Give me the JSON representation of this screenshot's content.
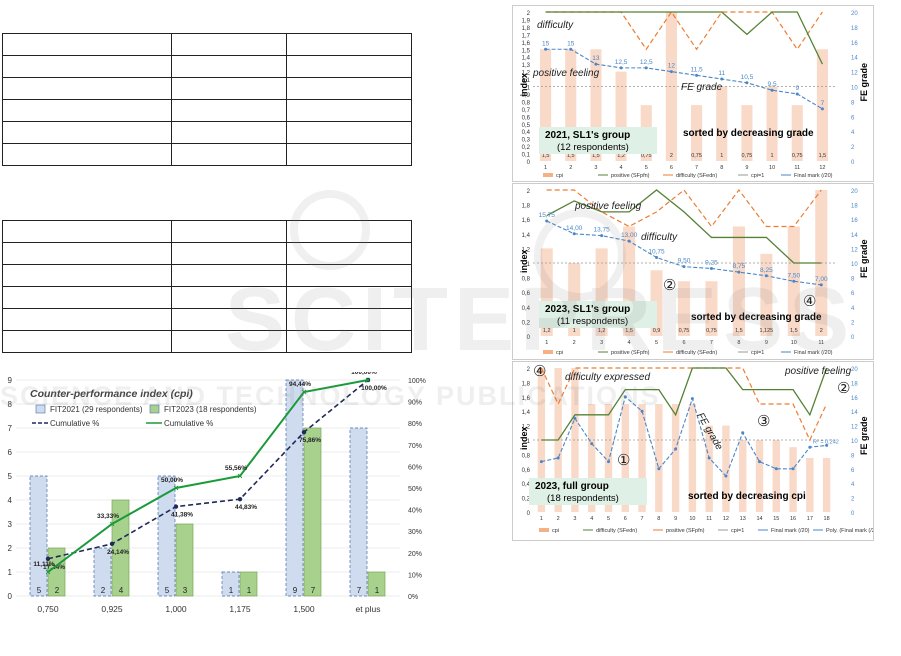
{
  "tables": {
    "top_rows": 6,
    "bottom_rows": 6,
    "cols": 3
  },
  "chart_data": [
    {
      "type": "bar",
      "title": "Counter-performance index (cpi)",
      "categories": [
        "0,750",
        "0,925",
        "1,000",
        "1,175",
        "1,500",
        "et plus"
      ],
      "series": [
        {
          "name": "FIT2021 (29 respondents)",
          "values": [
            5,
            2,
            5,
            1,
            9,
            7
          ],
          "color": "#cfdcef"
        },
        {
          "name": "FIT2023 (18 respondents)",
          "values": [
            2,
            4,
            3,
            1,
            7,
            1
          ],
          "color": "#a9d18e"
        },
        {
          "name": "Cumulative %",
          "values": [
            17.24,
            24.14,
            41.38,
            44.83,
            75.86,
            100.0
          ],
          "labels": [
            "17,24%",
            "24,14%",
            "41,38%",
            "44,83%",
            "75,86%",
            "100,00%"
          ],
          "color": "#1f2a5a",
          "axis": "right"
        },
        {
          "name": "Cumulative %",
          "values": [
            11.11,
            33.33,
            50.0,
            55.56,
            94.44,
            100.0
          ],
          "labels": [
            "11,11%",
            "33,33%",
            "50,00%",
            "55,56%",
            "94,44%",
            "100,00%"
          ],
          "color": "#1a9a3a",
          "axis": "right"
        }
      ],
      "ylim": [
        0,
        9
      ],
      "y_ticks": [
        "0",
        "1",
        "2",
        "3",
        "4",
        "5",
        "6",
        "7",
        "8",
        "9"
      ],
      "y2_ticks": [
        "0%",
        "10%",
        "20%",
        "30%",
        "40%",
        "50%",
        "60%",
        "70%",
        "80%",
        "90%",
        "100%"
      ]
    },
    {
      "type": "bar",
      "title": "2021, SL1's group",
      "subtitle": "(12 respondents)",
      "sort_label": "sorted by decreasing grade",
      "ylabel": "index",
      "y2label": "FE grade",
      "annotations": [
        "difficulty",
        "positive feeling",
        "FE grade"
      ],
      "x": [
        "1",
        "2",
        "3",
        "4",
        "5",
        "6",
        "7",
        "8",
        "9",
        "10",
        "11",
        "12"
      ],
      "cpi": [
        1.5,
        1.5,
        1.5,
        1.2,
        0.75,
        2,
        0.75,
        1,
        0.75,
        1,
        0.75,
        1.5
      ],
      "cpi_labels": [
        "1,5",
        "1,5",
        "1,5",
        "1,2",
        "0,75",
        "2",
        "0,75",
        "1",
        "0,75",
        "1",
        "0,75",
        "1,5"
      ],
      "positive": [
        2,
        2,
        2,
        2,
        2,
        2,
        2,
        2,
        1.7,
        2,
        2,
        1.3
      ],
      "difficulty": [
        2,
        2,
        2,
        2,
        1.5,
        2,
        1.5,
        2,
        2,
        2,
        1.5,
        2
      ],
      "final_mark": [
        15,
        15,
        13,
        12.5,
        12.5,
        12,
        11.5,
        11,
        10.5,
        9.5,
        9,
        7
      ],
      "final_mark_labels": [
        "15",
        "15",
        "13",
        "12,5",
        "12,5",
        "12",
        "11,5",
        "11",
        "10,5",
        "9,5",
        "9",
        "7"
      ],
      "ylim": [
        0,
        2
      ],
      "y2lim": [
        0,
        20
      ],
      "y_ticks": [
        "0",
        "0,1",
        "0,2",
        "0,3",
        "0,4",
        "0,5",
        "0,6",
        "0,7",
        "0,8",
        "0,9",
        "1",
        "1,1",
        "1,2",
        "1,3",
        "1,4",
        "1,5",
        "1,6",
        "1,7",
        "1,8",
        "1,9",
        "2"
      ],
      "y2_ticks": [
        "0",
        "2",
        "4",
        "6",
        "8",
        "10",
        "12",
        "14",
        "16",
        "18",
        "20"
      ],
      "legend": [
        "cpi",
        "positive (SFpfn)",
        "difficulty (SFedn)",
        "cpi=1",
        "Final mark (/20)"
      ]
    },
    {
      "type": "bar",
      "title": "2023, SL1's group",
      "subtitle": "(11 respondents)",
      "sort_label": "sorted by decreasing grade",
      "ylabel": "index",
      "y2label": "FE grade",
      "annotations": [
        "positive feeling",
        "difficulty",
        "②",
        "④"
      ],
      "x": [
        "1",
        "2",
        "3",
        "4",
        "5",
        "6",
        "7",
        "8",
        "9",
        "10",
        "11"
      ],
      "cpi": [
        1.2,
        1,
        1.2,
        1.5,
        0.9,
        0.75,
        0.75,
        1.5,
        1.125,
        1.5,
        2
      ],
      "cpi_labels": [
        "1,2",
        "1",
        "1,2",
        "1,5",
        "0,9",
        "0,75",
        "0,75",
        "1,5",
        "1,125",
        "1,5",
        "2"
      ],
      "positive": [
        1.65,
        1.85,
        1.7,
        1.7,
        2,
        1.7,
        1.35,
        1.35,
        1.35,
        1,
        1
      ],
      "difficulty": [
        2,
        2,
        1.7,
        1.5,
        1.7,
        2,
        1.5,
        2,
        1.5,
        1.5,
        2
      ],
      "final_mark": [
        15.75,
        14,
        13.75,
        13,
        10.75,
        9.5,
        9.25,
        8.75,
        8.25,
        7.5,
        7
      ],
      "final_mark_labels": [
        "15,75",
        "14,00",
        "13,75",
        "13,00",
        "10,75",
        "9,50",
        "9,25",
        "8,75",
        "8,25",
        "7,50",
        "7,00"
      ],
      "ylim": [
        0,
        2
      ],
      "y2lim": [
        0,
        20
      ],
      "y_ticks": [
        "0",
        "0,2",
        "0,4",
        "0,6",
        "0,8",
        "1",
        "1,2",
        "1,4",
        "1,6",
        "1,8",
        "2"
      ],
      "y2_ticks": [
        "0",
        "2",
        "4",
        "6",
        "8",
        "10",
        "12",
        "14",
        "16",
        "18",
        "20"
      ],
      "legend": [
        "cpi",
        "positive (SFpfn)",
        "difficulty (SFedn)",
        "cpi=1",
        "Final mark (/20)"
      ]
    },
    {
      "type": "bar",
      "title": "2023, full group",
      "subtitle": "(18 respondents)",
      "sort_label": "sorted by decreasing cpi",
      "ylabel": "index",
      "y2label": "FE grade",
      "annotations": [
        "④",
        "difficulty expressed",
        "positive feeling",
        "②",
        "③",
        "①",
        "FE grade"
      ],
      "x": [
        "1",
        "2",
        "3",
        "4",
        "5",
        "6",
        "7",
        "8",
        "9",
        "10",
        "11",
        "12",
        "13",
        "14",
        "15",
        "16",
        "17",
        "18"
      ],
      "cpi": [
        2,
        2,
        2,
        1.5,
        1.5,
        1.5,
        1.5,
        1.5,
        1.5,
        1.5,
        1.2,
        1.2,
        1,
        1,
        1,
        0.9,
        0.75,
        0.75
      ],
      "positive": [
        1,
        1,
        1.35,
        1.35,
        1.35,
        1.7,
        1.7,
        1.7,
        1.35,
        2,
        2,
        2,
        1.7,
        1.7,
        1.7,
        1.7,
        1.35,
        2
      ],
      "difficulty": [
        2,
        1.5,
        2,
        2,
        2,
        2,
        2,
        2,
        2,
        2,
        2,
        2,
        2,
        1.5,
        1.5,
        1.5,
        1,
        1.5
      ],
      "final_mark": [
        7,
        7.5,
        13,
        9.5,
        7,
        16,
        14,
        6,
        8.75,
        15.75,
        7.5,
        5,
        11,
        7,
        6,
        6,
        9,
        9.25
      ],
      "trend_label": "R² = 0,242",
      "ylim": [
        0,
        2
      ],
      "y2lim": [
        0,
        20
      ],
      "y_ticks": [
        "0",
        "0,2",
        "0,4",
        "0,6",
        "0,8",
        "1",
        "1,2",
        "1,4",
        "1,6",
        "1,8",
        "2"
      ],
      "y2_ticks": [
        "0",
        "2",
        "4",
        "6",
        "8",
        "10",
        "12",
        "14",
        "16",
        "18",
        "20"
      ],
      "legend": [
        "cpi",
        "difficulty (SFedn)",
        "positive (SFpfn)",
        "cpi=1",
        "Final mark (/20)",
        "Poly. (Final mark (/20))"
      ]
    }
  ],
  "watermark": "SCITEPRESS SCIENCE AND TECHNOLOGY PUBLICATIONS"
}
